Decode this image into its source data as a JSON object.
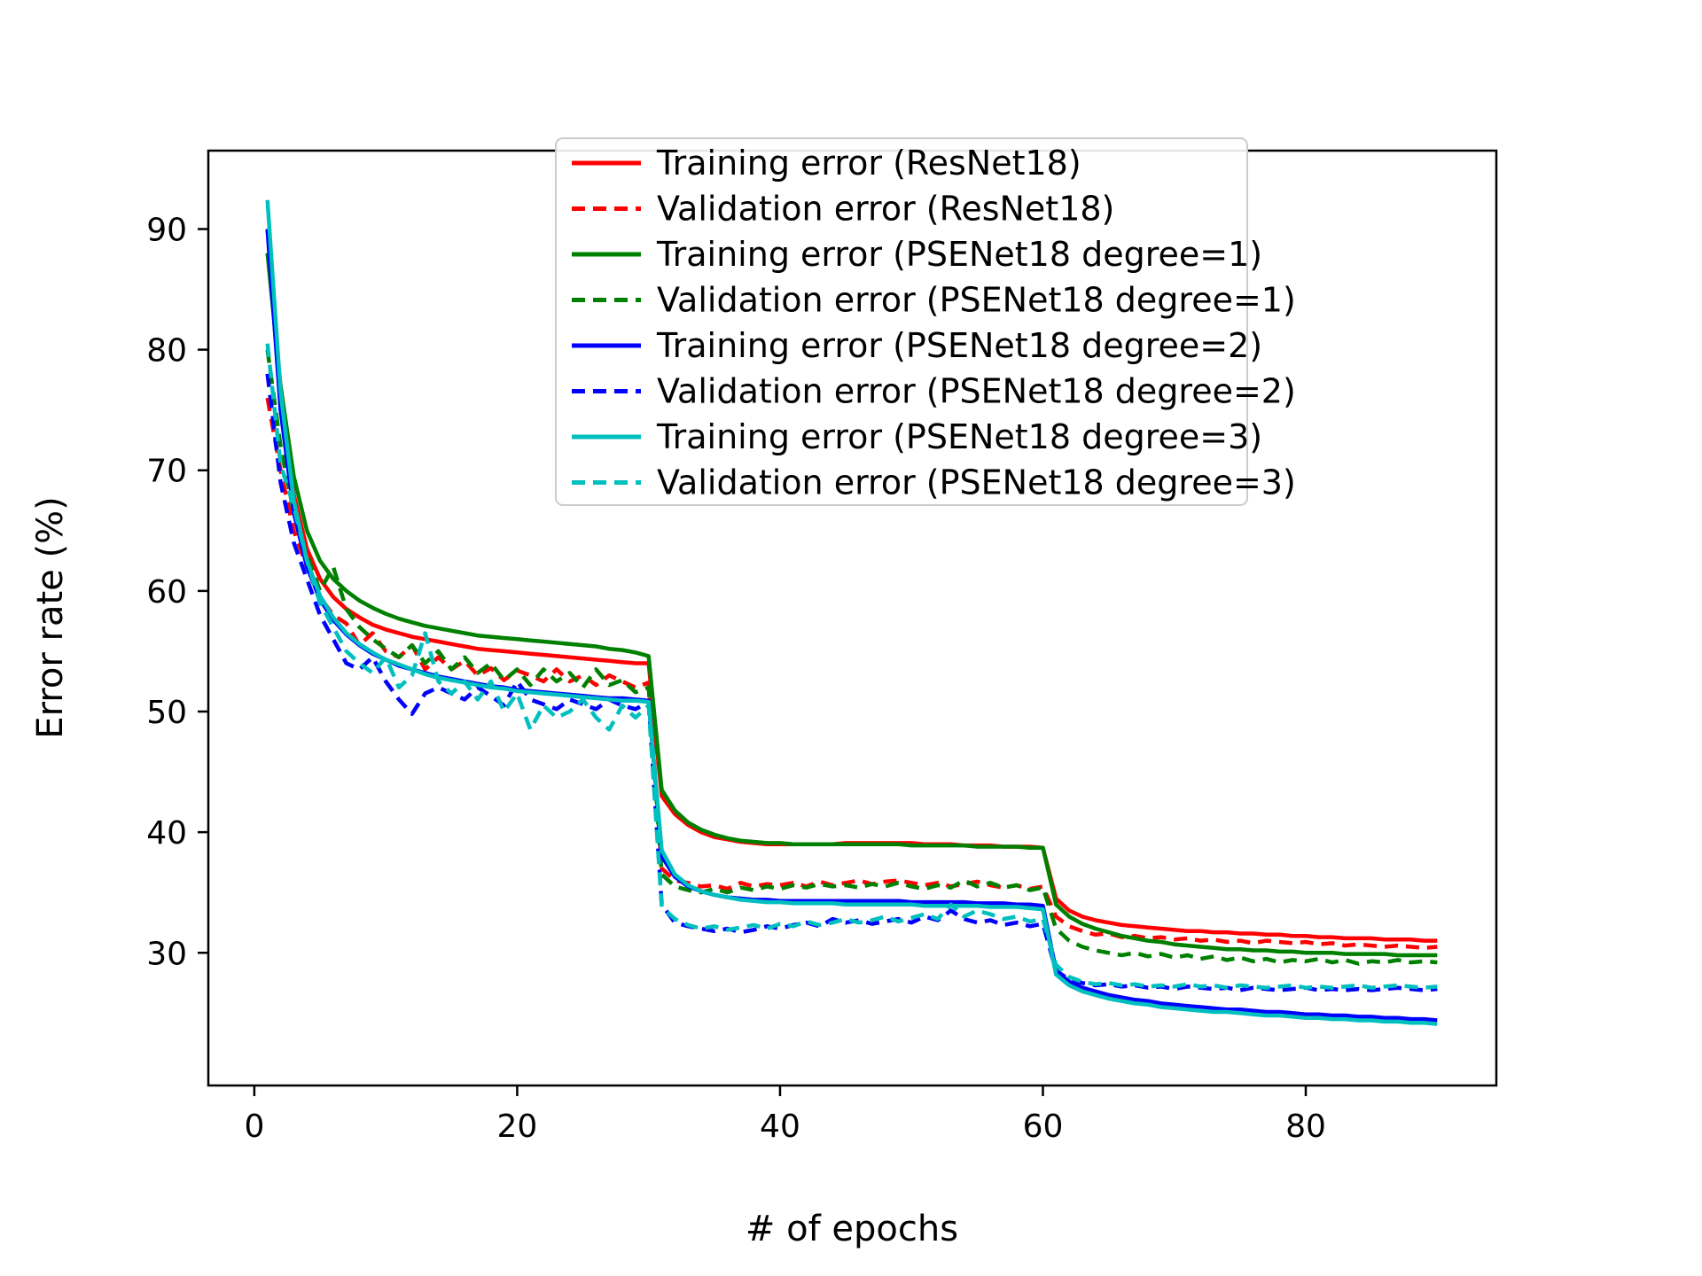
{
  "figure": {
    "background": "#ffffff"
  },
  "chart_data": {
    "type": "line",
    "title": "",
    "xlabel": "# of epochs",
    "ylabel": "Error rate (%)",
    "xlim": [
      -3.5,
      94.5
    ],
    "ylim": [
      19,
      96.5
    ],
    "xticks": [
      0,
      20,
      40,
      60,
      80
    ],
    "yticks": [
      30,
      40,
      50,
      60,
      70,
      80,
      90
    ],
    "grid": false,
    "legend_position": "upper right",
    "x_start": 1,
    "x_step": 1,
    "series": [
      {
        "name": "training-resnet18",
        "label": "Training error (ResNet18)",
        "color": "#ff0000",
        "style": "solid",
        "values": [
          90.0,
          76.0,
          68.0,
          63.5,
          61.0,
          59.5,
          58.5,
          57.8,
          57.2,
          56.8,
          56.5,
          56.2,
          56.0,
          55.8,
          55.6,
          55.4,
          55.2,
          55.1,
          55.0,
          54.9,
          54.8,
          54.7,
          54.6,
          54.5,
          54.4,
          54.3,
          54.2,
          54.1,
          54.0,
          54.0,
          43.0,
          41.5,
          40.6,
          40.0,
          39.6,
          39.4,
          39.2,
          39.1,
          39.0,
          39.0,
          39.0,
          39.0,
          39.0,
          39.0,
          39.1,
          39.1,
          39.1,
          39.1,
          39.1,
          39.1,
          39.0,
          39.0,
          39.0,
          38.9,
          38.9,
          38.9,
          38.8,
          38.8,
          38.8,
          38.7,
          34.5,
          33.5,
          33.0,
          32.7,
          32.5,
          32.3,
          32.2,
          32.1,
          32.0,
          31.9,
          31.8,
          31.8,
          31.7,
          31.7,
          31.6,
          31.6,
          31.5,
          31.5,
          31.4,
          31.4,
          31.3,
          31.3,
          31.2,
          31.2,
          31.2,
          31.1,
          31.1,
          31.1,
          31.0,
          31.0
        ]
      },
      {
        "name": "validation-resnet18",
        "label": "Validation error (ResNet18)",
        "color": "#ff0000",
        "style": "dashed",
        "values": [
          76.0,
          70.0,
          65.0,
          62.0,
          59.5,
          58.0,
          57.3,
          55.5,
          56.5,
          55.0,
          54.5,
          55.5,
          53.5,
          54.5,
          53.5,
          54.2,
          53.0,
          53.6,
          52.6,
          53.4,
          53.0,
          52.5,
          53.5,
          52.5,
          53.0,
          52.2,
          53.0,
          52.5,
          52.0,
          52.4,
          37.0,
          36.0,
          35.8,
          35.5,
          35.6,
          35.3,
          35.8,
          35.5,
          35.7,
          35.6,
          35.8,
          35.5,
          35.9,
          35.6,
          35.8,
          36.0,
          35.7,
          35.9,
          36.0,
          35.8,
          35.6,
          35.8,
          35.5,
          35.7,
          35.9,
          35.6,
          35.4,
          35.6,
          35.3,
          35.5,
          33.0,
          32.2,
          31.8,
          31.5,
          31.6,
          31.3,
          31.4,
          31.2,
          31.3,
          31.1,
          31.2,
          31.0,
          31.1,
          30.9,
          31.0,
          30.8,
          31.0,
          30.9,
          30.8,
          30.9,
          30.7,
          30.8,
          30.6,
          30.7,
          30.6,
          30.5,
          30.6,
          30.5,
          30.4,
          30.5
        ]
      },
      {
        "name": "training-psenet18-degree1",
        "label": "Training error (PSENet18 degree=1)",
        "color": "#008000",
        "style": "solid",
        "values": [
          88.0,
          77.0,
          69.5,
          65.0,
          62.5,
          61.0,
          60.0,
          59.2,
          58.6,
          58.1,
          57.7,
          57.4,
          57.1,
          56.9,
          56.7,
          56.5,
          56.3,
          56.2,
          56.1,
          56.0,
          55.9,
          55.8,
          55.7,
          55.6,
          55.5,
          55.4,
          55.2,
          55.1,
          54.9,
          54.6,
          43.5,
          41.8,
          40.8,
          40.2,
          39.8,
          39.5,
          39.3,
          39.2,
          39.1,
          39.1,
          39.0,
          39.0,
          39.0,
          39.0,
          39.0,
          39.0,
          39.0,
          39.0,
          39.0,
          38.9,
          38.9,
          38.9,
          38.9,
          38.9,
          38.8,
          38.8,
          38.8,
          38.8,
          38.7,
          38.7,
          34.0,
          33.0,
          32.4,
          32.0,
          31.7,
          31.4,
          31.2,
          31.0,
          30.9,
          30.7,
          30.6,
          30.5,
          30.4,
          30.3,
          30.3,
          30.2,
          30.2,
          30.1,
          30.1,
          30.0,
          30.0,
          30.0,
          29.9,
          29.9,
          29.9,
          29.9,
          29.8,
          29.8,
          29.8,
          29.8
        ]
      },
      {
        "name": "validation-psenet18-degree1",
        "label": "Validation error (PSENet18 degree=1)",
        "color": "#008000",
        "style": "dashed",
        "values": [
          80.0,
          72.0,
          66.5,
          63.0,
          60.0,
          62.0,
          58.5,
          57.0,
          56.0,
          55.2,
          54.5,
          55.5,
          54.0,
          55.0,
          53.5,
          54.5,
          53.2,
          54.0,
          52.6,
          53.5,
          52.2,
          53.5,
          52.5,
          53.2,
          52.0,
          53.5,
          52.2,
          52.6,
          51.6,
          52.0,
          36.5,
          35.5,
          35.2,
          35.0,
          35.3,
          35.0,
          35.4,
          35.2,
          35.5,
          35.3,
          35.6,
          35.4,
          35.7,
          35.5,
          35.6,
          35.4,
          35.7,
          35.5,
          35.8,
          35.5,
          35.3,
          35.6,
          35.4,
          36.0,
          35.5,
          35.8,
          35.4,
          35.6,
          35.2,
          35.4,
          32.0,
          31.0,
          30.5,
          30.2,
          30.0,
          29.8,
          30.0,
          29.7,
          29.9,
          29.6,
          29.8,
          29.5,
          29.7,
          29.4,
          29.6,
          29.3,
          29.5,
          29.2,
          29.4,
          29.3,
          29.5,
          29.2,
          29.4,
          29.1,
          29.3,
          29.2,
          29.4,
          29.2,
          29.3,
          29.2
        ]
      },
      {
        "name": "training-psenet18-degree2",
        "label": "Training error (PSENet18 degree=2)",
        "color": "#0000ff",
        "style": "solid",
        "values": [
          90.0,
          75.0,
          66.5,
          62.0,
          59.3,
          57.6,
          56.4,
          55.5,
          54.8,
          54.3,
          53.8,
          53.5,
          53.2,
          52.9,
          52.7,
          52.5,
          52.3,
          52.1,
          52.0,
          51.8,
          51.7,
          51.6,
          51.5,
          51.4,
          51.3,
          51.2,
          51.1,
          51.1,
          51.0,
          50.9,
          38.0,
          36.3,
          35.5,
          35.1,
          34.8,
          34.6,
          34.5,
          34.4,
          34.4,
          34.3,
          34.3,
          34.3,
          34.3,
          34.3,
          34.3,
          34.3,
          34.3,
          34.3,
          34.3,
          34.2,
          34.2,
          34.2,
          34.2,
          34.2,
          34.1,
          34.1,
          34.1,
          34.0,
          34.0,
          33.9,
          28.5,
          27.6,
          27.1,
          26.8,
          26.5,
          26.3,
          26.1,
          26.0,
          25.8,
          25.7,
          25.6,
          25.5,
          25.4,
          25.3,
          25.3,
          25.2,
          25.1,
          25.1,
          25.0,
          24.9,
          24.9,
          24.8,
          24.8,
          24.7,
          24.7,
          24.6,
          24.6,
          24.5,
          24.5,
          24.4
        ]
      },
      {
        "name": "validation-psenet18-degree2",
        "label": "Validation error (PSENet18 degree=2)",
        "color": "#0000ff",
        "style": "dashed",
        "values": [
          78.0,
          69.0,
          64.0,
          61.0,
          58.0,
          56.0,
          54.0,
          53.5,
          54.5,
          52.5,
          51.0,
          49.8,
          51.5,
          52.0,
          51.5,
          51.0,
          52.0,
          51.3,
          50.5,
          52.5,
          51.0,
          50.6,
          50.2,
          51.0,
          50.6,
          50.2,
          51.0,
          50.5,
          50.2,
          50.8,
          34.0,
          32.5,
          32.2,
          32.0,
          31.8,
          32.0,
          31.7,
          31.9,
          32.2,
          32.0,
          32.3,
          32.5,
          32.2,
          32.8,
          32.5,
          32.7,
          32.4,
          32.6,
          32.8,
          32.5,
          33.0,
          32.7,
          33.5,
          32.8,
          32.5,
          32.7,
          32.3,
          32.5,
          32.2,
          32.4,
          28.5,
          27.8,
          27.5,
          27.3,
          27.4,
          27.2,
          27.3,
          27.1,
          27.2,
          27.0,
          27.2,
          27.1,
          27.0,
          27.1,
          26.9,
          27.1,
          27.0,
          26.9,
          27.0,
          27.1,
          26.9,
          27.0,
          26.9,
          27.0,
          26.9,
          27.0,
          27.1,
          27.0,
          26.9,
          27.0
        ]
      },
      {
        "name": "training-psenet18-degree3",
        "label": "Training error (PSENet18 degree=3)",
        "color": "#00bfbf",
        "style": "solid",
        "values": [
          92.4,
          76.5,
          67.5,
          62.5,
          59.6,
          57.8,
          56.5,
          55.6,
          54.9,
          54.3,
          53.9,
          53.5,
          53.1,
          52.8,
          52.6,
          52.4,
          52.2,
          52.0,
          51.9,
          51.7,
          51.6,
          51.5,
          51.4,
          51.3,
          51.2,
          51.1,
          51.0,
          50.9,
          50.9,
          50.8,
          38.5,
          36.5,
          35.6,
          35.1,
          34.8,
          34.6,
          34.4,
          34.3,
          34.2,
          34.2,
          34.1,
          34.1,
          34.1,
          34.1,
          34.0,
          34.0,
          34.0,
          34.0,
          34.0,
          34.0,
          33.9,
          33.9,
          33.9,
          33.9,
          33.9,
          33.8,
          33.8,
          33.8,
          33.7,
          33.6,
          28.2,
          27.3,
          26.8,
          26.5,
          26.2,
          26.0,
          25.8,
          25.7,
          25.5,
          25.4,
          25.3,
          25.2,
          25.1,
          25.1,
          25.0,
          24.9,
          24.8,
          24.8,
          24.7,
          24.6,
          24.6,
          24.5,
          24.5,
          24.4,
          24.4,
          24.3,
          24.3,
          24.2,
          24.2,
          24.1
        ]
      },
      {
        "name": "validation-psenet18-degree3",
        "label": "Validation error (PSENet18 degree=3)",
        "color": "#00bfbf",
        "style": "dashed",
        "values": [
          80.5,
          70.5,
          67.0,
          62.5,
          59.0,
          57.0,
          55.0,
          54.0,
          53.2,
          54.5,
          52.0,
          53.0,
          56.5,
          52.5,
          51.5,
          52.5,
          51.0,
          52.5,
          50.0,
          51.5,
          48.5,
          50.5,
          49.5,
          50.0,
          51.0,
          49.5,
          48.5,
          50.5,
          49.5,
          50.5,
          33.8,
          32.8,
          32.3,
          32.0,
          32.2,
          31.9,
          32.1,
          32.3,
          32.0,
          32.4,
          32.2,
          32.6,
          32.3,
          32.5,
          32.8,
          32.5,
          32.7,
          33.0,
          32.6,
          32.9,
          33.2,
          32.8,
          34.0,
          33.0,
          33.5,
          33.2,
          32.8,
          33.0,
          32.6,
          32.8,
          29.0,
          28.0,
          27.6,
          27.4,
          27.5,
          27.3,
          27.4,
          27.2,
          27.3,
          27.2,
          27.4,
          27.2,
          27.3,
          27.1,
          27.3,
          27.2,
          27.1,
          27.2,
          27.3,
          27.1,
          27.2,
          27.1,
          27.2,
          27.3,
          27.1,
          27.2,
          27.3,
          27.2,
          27.1,
          27.2
        ]
      }
    ]
  }
}
